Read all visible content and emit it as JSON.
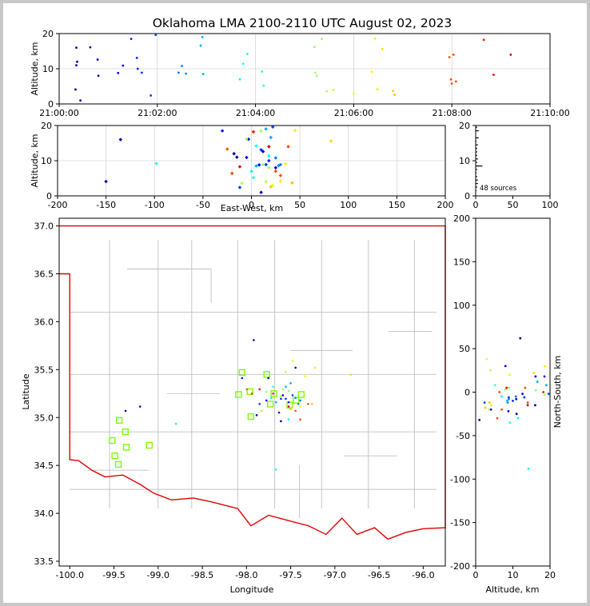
{
  "title": "Oklahoma LMA 2100-2110 UTC August 02, 2023",
  "colors": {
    "axes": "#000000",
    "grid": "#d6d6d6",
    "boundary": "#e00000",
    "county": "#c0c0c0",
    "station": "#7cfc00"
  },
  "panels": {
    "time_altitude": {
      "ylabel": "Altitude, km",
      "xticks": [
        "21:00:00",
        "21:02:00",
        "21:04:00",
        "21:06:00",
        "21:08:00",
        "21:10:00"
      ],
      "yticks": [
        "0",
        "10",
        "20"
      ]
    },
    "ew_altitude": {
      "ylabel": "Altitude, km",
      "xlabel": "East-West, km",
      "xticks": [
        "-200",
        "-150",
        "-100",
        "-50",
        "0",
        "50",
        "100",
        "150",
        "200"
      ],
      "yticks": [
        "0",
        "10",
        "20"
      ]
    },
    "histogram": {
      "xticks": [
        "0",
        "50",
        "100"
      ],
      "yticks": [
        "0",
        "10",
        "20"
      ],
      "annotation": "48 sources"
    },
    "map": {
      "xlabel": "Longitude",
      "ylabel": "Latitude",
      "xticks": [
        "-100.0",
        "-99.5",
        "-99.0",
        "-98.5",
        "-98.0",
        "-97.5",
        "-97.0",
        "-96.5",
        "-96.0"
      ],
      "yticks": [
        "33.5",
        "34.0",
        "34.5",
        "35.0",
        "35.5",
        "36.0",
        "36.5",
        "37.0"
      ]
    },
    "alt_ns": {
      "xlabel": "Altitude, km",
      "ylabel": "North-South, km",
      "xticks": [
        "0",
        "10",
        "20"
      ],
      "yticks": [
        "-200",
        "-150",
        "-100",
        "-50",
        "0",
        "50",
        "100",
        "150",
        "200"
      ]
    }
  },
  "chart_data": {
    "type": "scatter",
    "title": "Oklahoma LMA 2100-2110 UTC August 02, 2023",
    "time_range_s": [
      0,
      600
    ],
    "altitude_range_km": [
      0,
      20
    ],
    "ew_range_km": [
      -200,
      200
    ],
    "ns_range_km": [
      -200,
      200
    ],
    "lon_range": [
      -100.1,
      -95.75
    ],
    "lat_range": [
      33.45,
      37.08
    ],
    "colormap": "jet (time-colored)",
    "source_count": 48,
    "sources": [
      {
        "t": 21,
        "alt": 16.0,
        "ew": -135,
        "ns": -15
      },
      {
        "t": 22,
        "alt": 12.0,
        "ew": -18,
        "ns": 62
      },
      {
        "t": 21,
        "alt": 11.0,
        "ew": -15,
        "ns": -25
      },
      {
        "t": 20,
        "alt": 4.1,
        "ew": -150,
        "ns": -20
      },
      {
        "t": 26,
        "alt": 1.0,
        "ew": 10,
        "ns": -32
      },
      {
        "t": 38,
        "alt": 16.1,
        "ew": -3,
        "ns": 18
      },
      {
        "t": 47,
        "alt": 12.6,
        "ew": 12,
        "ns": -2
      },
      {
        "t": 48,
        "alt": 8.0,
        "ew": 25,
        "ns": 30
      },
      {
        "t": 72,
        "alt": 8.8,
        "ew": 8,
        "ns": -22
      },
      {
        "t": 78,
        "alt": 10.9,
        "ew": -5,
        "ns": -8
      },
      {
        "t": 88,
        "alt": 18.5,
        "ew": -30,
        "ns": 18
      },
      {
        "t": 95,
        "alt": 13.1,
        "ew": 10,
        "ns": -6
      },
      {
        "t": 96,
        "alt": 10.0,
        "ew": 18,
        "ns": -10
      },
      {
        "t": 101,
        "alt": 8.9,
        "ew": 15,
        "ns": -6
      },
      {
        "t": 112,
        "alt": 2.4,
        "ew": -12,
        "ns": -12
      },
      {
        "t": 118,
        "alt": 19.6,
        "ew": 22,
        "ns": -2
      },
      {
        "t": 146,
        "alt": 8.9,
        "ew": 30,
        "ns": -8
      },
      {
        "t": 150,
        "alt": 10.8,
        "ew": 25,
        "ns": -5
      },
      {
        "t": 155,
        "alt": 8.6,
        "ew": 28,
        "ns": -12
      },
      {
        "t": 173,
        "alt": 16.6,
        "ew": 20,
        "ns": 12
      },
      {
        "t": 175,
        "alt": 19.0,
        "ew": 15,
        "ns": 8
      },
      {
        "t": 176,
        "alt": 8.5,
        "ew": 5,
        "ns": -10
      },
      {
        "t": 221,
        "alt": 7.0,
        "ew": 0,
        "ns": -5
      },
      {
        "t": 225,
        "alt": 11.4,
        "ew": 18,
        "ns": -30
      },
      {
        "t": 230,
        "alt": 14.2,
        "ew": 5,
        "ns": -88
      },
      {
        "t": 248,
        "alt": 9.2,
        "ew": -98,
        "ns": -35
      },
      {
        "t": 250,
        "alt": 5.2,
        "ew": 2,
        "ns": 8
      },
      {
        "t": 312,
        "alt": 16.2,
        "ew": -5,
        "ns": 2
      },
      {
        "t": 313,
        "alt": 8.9,
        "ew": 12,
        "ns": 5
      },
      {
        "t": 315,
        "alt": 8.0,
        "ew": 18,
        "ns": 3
      },
      {
        "t": 321,
        "alt": 18.5,
        "ew": 10,
        "ns": -3
      },
      {
        "t": 327,
        "alt": 3.6,
        "ew": -10,
        "ns": -20
      },
      {
        "t": 335,
        "alt": 4.0,
        "ew": 15,
        "ns": 25
      },
      {
        "t": 360,
        "alt": 3.0,
        "ew": 22,
        "ns": 38
      },
      {
        "t": 382,
        "alt": 9.1,
        "ew": 35,
        "ns": 20
      },
      {
        "t": 386,
        "alt": 18.6,
        "ew": 45,
        "ns": 30
      },
      {
        "t": 389,
        "alt": 4.2,
        "ew": 30,
        "ns": -15
      },
      {
        "t": 395,
        "alt": 15.6,
        "ew": 82,
        "ns": 22
      },
      {
        "t": 408,
        "alt": 3.7,
        "ew": 42,
        "ns": -12
      },
      {
        "t": 410,
        "alt": 2.6,
        "ew": 20,
        "ns": -18
      },
      {
        "t": 477,
        "alt": 13.3,
        "ew": -25,
        "ns": 5
      },
      {
        "t": 479,
        "alt": 7.0,
        "ew": 25,
        "ns": -20
      },
      {
        "t": 480,
        "alt": 5.8,
        "ew": 30,
        "ns": -30
      },
      {
        "t": 482,
        "alt": 14.0,
        "ew": 38,
        "ns": -12
      },
      {
        "t": 485,
        "alt": 6.4,
        "ew": -20,
        "ns": 0
      },
      {
        "t": 519,
        "alt": 18.2,
        "ew": 2,
        "ns": 0
      },
      {
        "t": 531,
        "alt": 8.3,
        "ew": -12,
        "ns": 5
      },
      {
        "t": 552,
        "alt": 14.0,
        "ew": 18,
        "ns": -15
      }
    ],
    "stations": [
      {
        "lon": -99.52,
        "lat": 34.76
      },
      {
        "lon": -99.49,
        "lat": 34.6
      },
      {
        "lon": -99.45,
        "lat": 34.51
      },
      {
        "lon": -99.44,
        "lat": 34.97
      },
      {
        "lon": -99.37,
        "lat": 34.85
      },
      {
        "lon": -99.36,
        "lat": 34.69
      },
      {
        "lon": -99.1,
        "lat": 34.71
      },
      {
        "lon": -98.09,
        "lat": 35.24
      },
      {
        "lon": -98.05,
        "lat": 35.47
      },
      {
        "lon": -97.96,
        "lat": 35.27
      },
      {
        "lon": -97.95,
        "lat": 35.01
      },
      {
        "lon": -97.77,
        "lat": 35.45
      },
      {
        "lon": -97.73,
        "lat": 35.14
      },
      {
        "lon": -97.69,
        "lat": 35.25
      },
      {
        "lon": -97.51,
        "lat": 35.13
      },
      {
        "lon": -97.44,
        "lat": 35.18
      },
      {
        "lon": -97.38,
        "lat": 35.24
      }
    ]
  }
}
